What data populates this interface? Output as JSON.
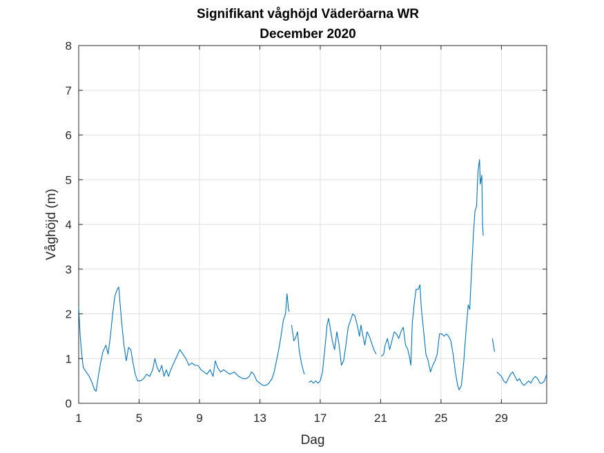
{
  "chart_data": {
    "type": "line",
    "title": "Signifikant våghöjd Väderöarna WR",
    "subtitle": "December 2020",
    "xlabel": "Dag",
    "ylabel": "Våghöjd (m)",
    "xlim": [
      1,
      32
    ],
    "ylim": [
      0,
      8
    ],
    "xticks": [
      1,
      5,
      9,
      13,
      17,
      21,
      25,
      29
    ],
    "yticks": [
      0,
      1,
      2,
      3,
      4,
      5,
      6,
      7,
      8
    ],
    "grid": true,
    "line_color": "#0072BD",
    "series": [
      {
        "segments": [
          [
            [
              1.0,
              2.15
            ],
            [
              1.1,
              1.5
            ],
            [
              1.2,
              1.1
            ],
            [
              1.3,
              0.8
            ],
            [
              1.5,
              0.7
            ],
            [
              1.7,
              0.6
            ],
            [
              1.9,
              0.45
            ],
            [
              2.05,
              0.3
            ],
            [
              2.15,
              0.27
            ],
            [
              2.3,
              0.6
            ],
            [
              2.45,
              0.9
            ],
            [
              2.6,
              1.15
            ],
            [
              2.8,
              1.3
            ],
            [
              2.95,
              1.1
            ],
            [
              3.1,
              1.5
            ],
            [
              3.25,
              2.0
            ],
            [
              3.4,
              2.4
            ],
            [
              3.55,
              2.55
            ],
            [
              3.65,
              2.6
            ],
            [
              3.75,
              2.2
            ],
            [
              3.85,
              1.8
            ],
            [
              4.0,
              1.3
            ],
            [
              4.15,
              0.95
            ],
            [
              4.3,
              1.25
            ],
            [
              4.45,
              1.2
            ],
            [
              4.6,
              0.9
            ],
            [
              4.75,
              0.65
            ],
            [
              4.9,
              0.5
            ],
            [
              5.1,
              0.5
            ],
            [
              5.3,
              0.55
            ],
            [
              5.5,
              0.65
            ],
            [
              5.7,
              0.6
            ],
            [
              5.9,
              0.75
            ],
            [
              6.05,
              1.0
            ],
            [
              6.2,
              0.8
            ],
            [
              6.35,
              0.7
            ],
            [
              6.5,
              0.85
            ],
            [
              6.65,
              0.6
            ],
            [
              6.8,
              0.75
            ],
            [
              6.95,
              0.6
            ],
            [
              7.1,
              0.75
            ],
            [
              7.3,
              0.9
            ],
            [
              7.5,
              1.05
            ],
            [
              7.7,
              1.2
            ],
            [
              7.9,
              1.1
            ],
            [
              8.1,
              1.0
            ],
            [
              8.3,
              0.85
            ],
            [
              8.5,
              0.9
            ],
            [
              8.7,
              0.85
            ],
            [
              8.9,
              0.85
            ],
            [
              9.1,
              0.75
            ],
            [
              9.3,
              0.7
            ],
            [
              9.5,
              0.65
            ],
            [
              9.7,
              0.75
            ],
            [
              9.9,
              0.6
            ],
            [
              10.05,
              0.95
            ],
            [
              10.2,
              0.8
            ],
            [
              10.4,
              0.7
            ],
            [
              10.6,
              0.75
            ],
            [
              10.8,
              0.7
            ],
            [
              11.0,
              0.65
            ],
            [
              11.3,
              0.7
            ],
            [
              11.6,
              0.6
            ],
            [
              11.9,
              0.55
            ],
            [
              12.1,
              0.55
            ],
            [
              12.3,
              0.6
            ],
            [
              12.45,
              0.7
            ],
            [
              12.6,
              0.65
            ],
            [
              12.8,
              0.5
            ],
            [
              13.0,
              0.45
            ],
            [
              13.2,
              0.4
            ],
            [
              13.4,
              0.4
            ],
            [
              13.6,
              0.45
            ],
            [
              13.8,
              0.55
            ],
            [
              13.95,
              0.7
            ],
            [
              14.1,
              0.95
            ],
            [
              14.25,
              1.2
            ],
            [
              14.4,
              1.5
            ],
            [
              14.55,
              1.85
            ],
            [
              14.7,
              2.0
            ],
            [
              14.8,
              2.45
            ],
            [
              14.9,
              2.1
            ],
            [
              14.95,
              2.05
            ]
          ],
          [
            [
              15.1,
              1.75
            ],
            [
              15.25,
              1.4
            ],
            [
              15.35,
              1.45
            ],
            [
              15.5,
              1.6
            ],
            [
              15.6,
              1.2
            ],
            [
              15.75,
              0.9
            ],
            [
              15.9,
              0.7
            ],
            [
              15.95,
              0.65
            ]
          ],
          [
            [
              16.25,
              0.47
            ],
            [
              16.4,
              0.5
            ],
            [
              16.55,
              0.45
            ],
            [
              16.7,
              0.5
            ],
            [
              16.85,
              0.45
            ],
            [
              17.0,
              0.5
            ],
            [
              17.15,
              0.7
            ],
            [
              17.3,
              1.2
            ],
            [
              17.45,
              1.75
            ],
            [
              17.55,
              1.9
            ],
            [
              17.65,
              1.7
            ],
            [
              17.8,
              1.4
            ],
            [
              17.95,
              1.2
            ],
            [
              18.1,
              1.6
            ],
            [
              18.25,
              1.3
            ],
            [
              18.4,
              0.85
            ],
            [
              18.55,
              0.95
            ],
            [
              18.7,
              1.3
            ],
            [
              18.85,
              1.7
            ],
            [
              19.0,
              1.85
            ],
            [
              19.15,
              2.0
            ],
            [
              19.3,
              1.95
            ],
            [
              19.45,
              1.75
            ],
            [
              19.6,
              1.5
            ],
            [
              19.7,
              1.75
            ],
            [
              19.8,
              1.55
            ],
            [
              19.95,
              1.3
            ],
            [
              20.1,
              1.6
            ],
            [
              20.25,
              1.5
            ],
            [
              20.4,
              1.35
            ],
            [
              20.55,
              1.2
            ],
            [
              20.7,
              1.1
            ]
          ],
          [
            [
              21.05,
              1.05
            ],
            [
              21.2,
              1.1
            ],
            [
              21.3,
              1.3
            ],
            [
              21.45,
              1.45
            ],
            [
              21.6,
              1.2
            ],
            [
              21.75,
              1.4
            ],
            [
              21.9,
              1.6
            ],
            [
              22.05,
              1.55
            ],
            [
              22.2,
              1.45
            ],
            [
              22.35,
              1.6
            ],
            [
              22.5,
              1.7
            ],
            [
              22.65,
              1.3
            ],
            [
              22.8,
              1.2
            ],
            [
              22.9,
              1.05
            ],
            [
              23.0,
              0.85
            ],
            [
              23.1,
              1.8
            ],
            [
              23.25,
              2.3
            ],
            [
              23.35,
              2.55
            ],
            [
              23.5,
              2.55
            ],
            [
              23.6,
              2.65
            ],
            [
              23.7,
              2.1
            ],
            [
              23.85,
              1.6
            ],
            [
              24.0,
              1.1
            ],
            [
              24.15,
              0.95
            ],
            [
              24.3,
              0.7
            ],
            [
              24.45,
              0.85
            ],
            [
              24.6,
              0.95
            ],
            [
              24.75,
              1.1
            ],
            [
              24.9,
              1.55
            ],
            [
              25.05,
              1.55
            ],
            [
              25.2,
              1.5
            ],
            [
              25.35,
              1.55
            ],
            [
              25.5,
              1.5
            ],
            [
              25.65,
              1.4
            ],
            [
              25.8,
              1.1
            ],
            [
              25.95,
              0.7
            ],
            [
              26.1,
              0.4
            ],
            [
              26.2,
              0.3
            ],
            [
              26.35,
              0.4
            ],
            [
              26.5,
              0.9
            ],
            [
              26.65,
              1.6
            ],
            [
              26.8,
              2.2
            ],
            [
              26.9,
              2.1
            ],
            [
              27.0,
              2.8
            ],
            [
              27.15,
              3.8
            ],
            [
              27.25,
              4.3
            ],
            [
              27.35,
              4.4
            ],
            [
              27.45,
              5.2
            ],
            [
              27.55,
              5.45
            ],
            [
              27.6,
              4.9
            ],
            [
              27.7,
              5.1
            ],
            [
              27.75,
              4.0
            ],
            [
              27.8,
              3.75
            ]
          ],
          [
            [
              28.4,
              1.45
            ],
            [
              28.55,
              1.15
            ]
          ],
          [
            [
              28.7,
              0.7
            ],
            [
              28.85,
              0.65
            ],
            [
              29.0,
              0.6
            ],
            [
              29.15,
              0.5
            ],
            [
              29.3,
              0.45
            ],
            [
              29.45,
              0.55
            ],
            [
              29.6,
              0.65
            ],
            [
              29.75,
              0.7
            ],
            [
              29.9,
              0.6
            ],
            [
              30.05,
              0.5
            ],
            [
              30.2,
              0.55
            ],
            [
              30.35,
              0.45
            ],
            [
              30.5,
              0.4
            ],
            [
              30.65,
              0.45
            ],
            [
              30.8,
              0.5
            ],
            [
              30.95,
              0.45
            ],
            [
              31.1,
              0.55
            ],
            [
              31.25,
              0.6
            ],
            [
              31.4,
              0.55
            ],
            [
              31.55,
              0.45
            ],
            [
              31.7,
              0.45
            ],
            [
              31.85,
              0.5
            ],
            [
              32.0,
              0.65
            ]
          ]
        ]
      }
    ]
  }
}
